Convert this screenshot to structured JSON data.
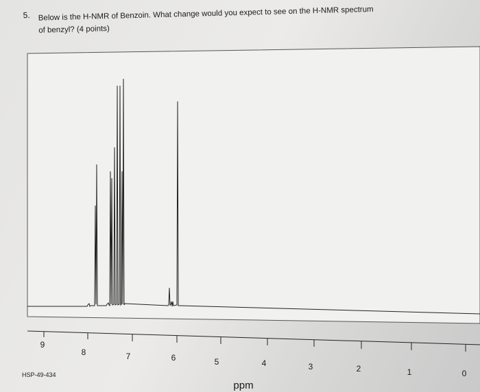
{
  "question": {
    "number": "5.",
    "lines": [
      "Below is the H-NMR of Benzoin. What change would you expect to see on the H-NMR spectrum",
      "of benzyl? (4 points)"
    ]
  },
  "spectrum": {
    "ticks": [
      "9",
      "8",
      "7",
      "6",
      "5",
      "4",
      "3",
      "2",
      "1",
      "0"
    ],
    "axis_label": "ppm",
    "code": "HSP-49-434"
  }
}
